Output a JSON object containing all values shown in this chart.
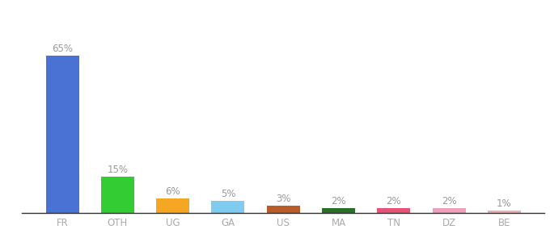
{
  "categories": [
    "FR",
    "OTH",
    "UG",
    "GA",
    "US",
    "MA",
    "TN",
    "DZ",
    "BE"
  ],
  "values": [
    65,
    15,
    6,
    5,
    3,
    2,
    2,
    2,
    1
  ],
  "labels": [
    "65%",
    "15%",
    "6%",
    "5%",
    "3%",
    "2%",
    "2%",
    "2%",
    "1%"
  ],
  "bar_colors": [
    "#4a72d4",
    "#33cc33",
    "#f5a623",
    "#80ccf0",
    "#b85c2a",
    "#2a6e2a",
    "#e8537a",
    "#f0a0b8",
    "#f0b0b0"
  ],
  "background_color": "#ffffff",
  "label_color": "#999999",
  "label_fontsize": 8.5,
  "tick_fontsize": 8.5,
  "tick_color": "#aaaaaa",
  "ylim": [
    0,
    80
  ],
  "bar_width": 0.6
}
